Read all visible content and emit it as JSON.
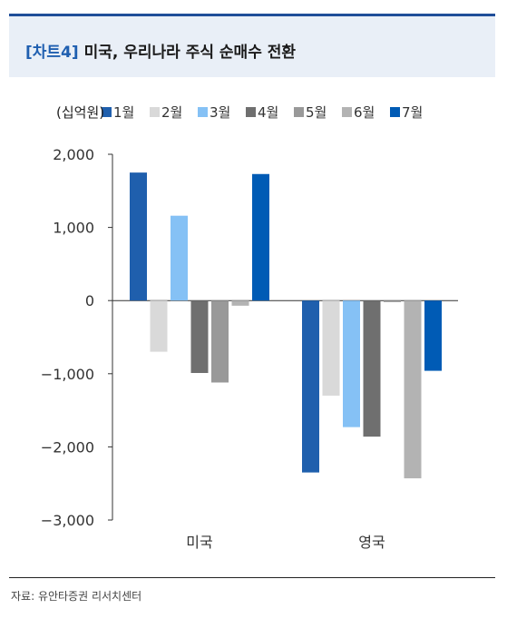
{
  "header": {
    "tag": "[차트4]",
    "title": "미국, 우리나라 주식 순매수 전환"
  },
  "chart_data": {
    "type": "bar",
    "unit_label": "(십억원)",
    "categories": [
      "미국",
      "영국"
    ],
    "series": [
      {
        "name": "1월",
        "color": "#1f5fad",
        "values": [
          1750,
          -2350
        ]
      },
      {
        "name": "2월",
        "color": "#d9d9d9",
        "values": [
          -700,
          -1300
        ]
      },
      {
        "name": "3월",
        "color": "#85c1f5",
        "values": [
          1160,
          -1730
        ]
      },
      {
        "name": "4월",
        "color": "#6f6f6f",
        "values": [
          -990,
          -1860
        ]
      },
      {
        "name": "5월",
        "color": "#999999",
        "values": [
          -1120,
          -20
        ]
      },
      {
        "name": "6월",
        "color": "#b3b3b3",
        "values": [
          -70,
          -2430
        ]
      },
      {
        "name": "7월",
        "color": "#005bb5",
        "values": [
          1730,
          -960
        ]
      }
    ],
    "ylim": [
      -3000,
      2000
    ],
    "yticks": [
      2000,
      1000,
      0,
      -1000,
      -2000,
      -3000
    ],
    "ytick_labels": [
      "2,000",
      "1,000",
      "0",
      "−1,000",
      "−2,000",
      "−3,000"
    ],
    "legend_position": "top"
  },
  "footer": {
    "source": "자료: 유안타증권 리서치센터"
  }
}
